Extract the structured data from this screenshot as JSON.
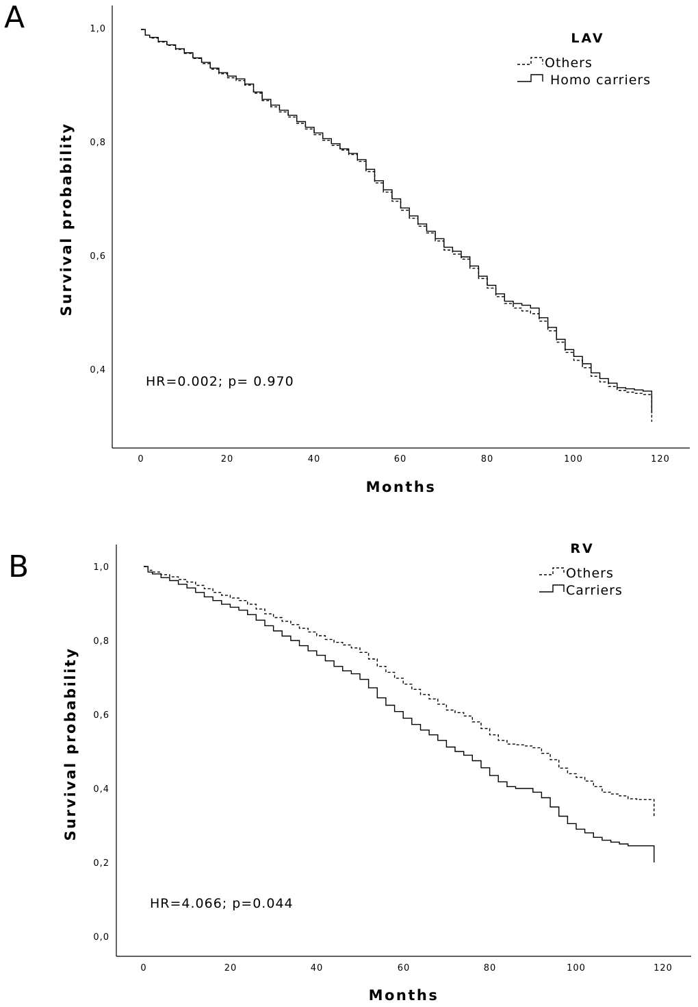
{
  "chart_data": [
    {
      "type": "line",
      "panel_label": "A",
      "legend_title": "LAV",
      "annotation": "HR=0.002; p= 0.970",
      "xlabel": "Months",
      "ylabel": "Survival probability",
      "xlim": [
        -6,
        126
      ],
      "ylim": [
        0.27,
        1.04
      ],
      "x_ticks": [
        0,
        20,
        40,
        60,
        80,
        100,
        120
      ],
      "x_tick_labels": [
        "0",
        "20",
        "40",
        "60",
        "80",
        "100",
        "120"
      ],
      "y_ticks": [
        0.4,
        0.6,
        0.8,
        1.0
      ],
      "y_tick_labels": [
        "0,4",
        "0,6",
        "0,8",
        "1,0"
      ],
      "legend_position": "top-right",
      "series": [
        {
          "name": "Others",
          "style": "dashed",
          "x": [
            0,
            1,
            2,
            4,
            6,
            8,
            10,
            12,
            14,
            16,
            18,
            20,
            22,
            24,
            26,
            28,
            30,
            32,
            34,
            36,
            38,
            40,
            42,
            44,
            46,
            48,
            50,
            52,
            54,
            56,
            58,
            60,
            62,
            64,
            66,
            68,
            70,
            72,
            74,
            76,
            78,
            80,
            82,
            84,
            86,
            88,
            90,
            92,
            94,
            96,
            98,
            100,
            102,
            104,
            106,
            108,
            110,
            112,
            114,
            116,
            118
          ],
          "values": [
            1.0,
            0.99,
            0.985,
            0.978,
            0.972,
            0.965,
            0.958,
            0.949,
            0.94,
            0.93,
            0.922,
            0.915,
            0.91,
            0.902,
            0.888,
            0.875,
            0.864,
            0.855,
            0.846,
            0.835,
            0.825,
            0.815,
            0.805,
            0.796,
            0.788,
            0.78,
            0.768,
            0.75,
            0.73,
            0.714,
            0.698,
            0.682,
            0.668,
            0.654,
            0.642,
            0.628,
            0.612,
            0.605,
            0.596,
            0.58,
            0.562,
            0.545,
            0.53,
            0.518,
            0.51,
            0.505,
            0.5,
            0.487,
            0.47,
            0.45,
            0.432,
            0.418,
            0.405,
            0.39,
            0.38,
            0.372,
            0.365,
            0.362,
            0.36,
            0.358,
            0.31
          ]
        },
        {
          "name": "Homo carriers",
          "style": "solid",
          "x": [
            0,
            1,
            2,
            4,
            6,
            8,
            10,
            12,
            14,
            16,
            18,
            20,
            22,
            24,
            26,
            28,
            30,
            32,
            34,
            36,
            38,
            40,
            42,
            44,
            46,
            48,
            50,
            52,
            54,
            56,
            58,
            60,
            62,
            64,
            66,
            68,
            70,
            72,
            74,
            76,
            78,
            80,
            82,
            84,
            86,
            88,
            90,
            92,
            94,
            96,
            98,
            100,
            102,
            104,
            106,
            108,
            110,
            112,
            114,
            116,
            118
          ],
          "values": [
            1.0,
            0.99,
            0.986,
            0.979,
            0.973,
            0.966,
            0.959,
            0.95,
            0.942,
            0.932,
            0.924,
            0.918,
            0.913,
            0.904,
            0.89,
            0.877,
            0.867,
            0.858,
            0.849,
            0.838,
            0.828,
            0.818,
            0.808,
            0.799,
            0.79,
            0.782,
            0.771,
            0.754,
            0.734,
            0.718,
            0.702,
            0.686,
            0.672,
            0.658,
            0.645,
            0.632,
            0.617,
            0.61,
            0.6,
            0.584,
            0.566,
            0.55,
            0.535,
            0.522,
            0.518,
            0.515,
            0.51,
            0.493,
            0.476,
            0.455,
            0.437,
            0.425,
            0.412,
            0.396,
            0.386,
            0.378,
            0.37,
            0.368,
            0.366,
            0.364,
            0.325
          ]
        }
      ]
    },
    {
      "type": "line",
      "panel_label": "B",
      "legend_title": "RV",
      "annotation": "HR=4.066; p=0.044",
      "xlabel": "Months",
      "ylabel": "Survival probability",
      "xlim": [
        -6,
        126
      ],
      "ylim": [
        -0.04,
        1.06
      ],
      "x_ticks": [
        0,
        20,
        40,
        60,
        80,
        100,
        120
      ],
      "x_tick_labels": [
        "0",
        "20",
        "40",
        "60",
        "80",
        "100",
        "120"
      ],
      "y_ticks": [
        0.0,
        0.2,
        0.4,
        0.6,
        0.8,
        1.0
      ],
      "y_tick_labels": [
        "0,0",
        "0,2",
        "0,4",
        "0,6",
        "0,8",
        "1,0"
      ],
      "legend_position": "top-right",
      "series": [
        {
          "name": "Others",
          "style": "dashed",
          "x": [
            0,
            1,
            2,
            4,
            6,
            8,
            10,
            12,
            14,
            16,
            18,
            20,
            22,
            24,
            26,
            28,
            30,
            32,
            34,
            36,
            38,
            40,
            42,
            44,
            46,
            48,
            50,
            52,
            54,
            56,
            58,
            60,
            62,
            64,
            66,
            68,
            70,
            72,
            74,
            76,
            78,
            80,
            82,
            84,
            86,
            88,
            90,
            92,
            94,
            96,
            98,
            100,
            102,
            104,
            106,
            108,
            110,
            112,
            114,
            116,
            118
          ],
          "values": [
            1.0,
            0.99,
            0.985,
            0.978,
            0.972,
            0.965,
            0.958,
            0.949,
            0.94,
            0.93,
            0.922,
            0.915,
            0.908,
            0.898,
            0.885,
            0.872,
            0.862,
            0.852,
            0.843,
            0.833,
            0.823,
            0.813,
            0.803,
            0.795,
            0.788,
            0.78,
            0.768,
            0.75,
            0.73,
            0.714,
            0.698,
            0.682,
            0.668,
            0.654,
            0.642,
            0.628,
            0.612,
            0.605,
            0.596,
            0.58,
            0.562,
            0.545,
            0.53,
            0.52,
            0.518,
            0.515,
            0.51,
            0.495,
            0.478,
            0.455,
            0.44,
            0.43,
            0.42,
            0.405,
            0.39,
            0.385,
            0.38,
            0.372,
            0.37,
            0.37,
            0.32
          ]
        },
        {
          "name": "Carriers",
          "style": "solid",
          "x": [
            0,
            1,
            2,
            4,
            6,
            8,
            10,
            12,
            14,
            16,
            18,
            20,
            22,
            24,
            26,
            28,
            30,
            32,
            34,
            36,
            38,
            40,
            42,
            44,
            46,
            48,
            50,
            52,
            54,
            56,
            58,
            60,
            62,
            64,
            66,
            68,
            70,
            72,
            74,
            76,
            78,
            80,
            82,
            84,
            86,
            88,
            90,
            92,
            94,
            96,
            98,
            100,
            102,
            104,
            106,
            108,
            110,
            112,
            114,
            116,
            118
          ],
          "values": [
            1.0,
            0.985,
            0.98,
            0.97,
            0.962,
            0.952,
            0.942,
            0.93,
            0.918,
            0.908,
            0.898,
            0.89,
            0.882,
            0.87,
            0.855,
            0.84,
            0.826,
            0.812,
            0.8,
            0.786,
            0.772,
            0.76,
            0.745,
            0.73,
            0.718,
            0.71,
            0.695,
            0.672,
            0.645,
            0.625,
            0.608,
            0.59,
            0.573,
            0.558,
            0.545,
            0.53,
            0.512,
            0.5,
            0.49,
            0.475,
            0.456,
            0.435,
            0.418,
            0.405,
            0.4,
            0.4,
            0.39,
            0.375,
            0.35,
            0.325,
            0.305,
            0.29,
            0.28,
            0.268,
            0.26,
            0.255,
            0.25,
            0.245,
            0.245,
            0.245,
            0.2
          ]
        }
      ]
    }
  ]
}
